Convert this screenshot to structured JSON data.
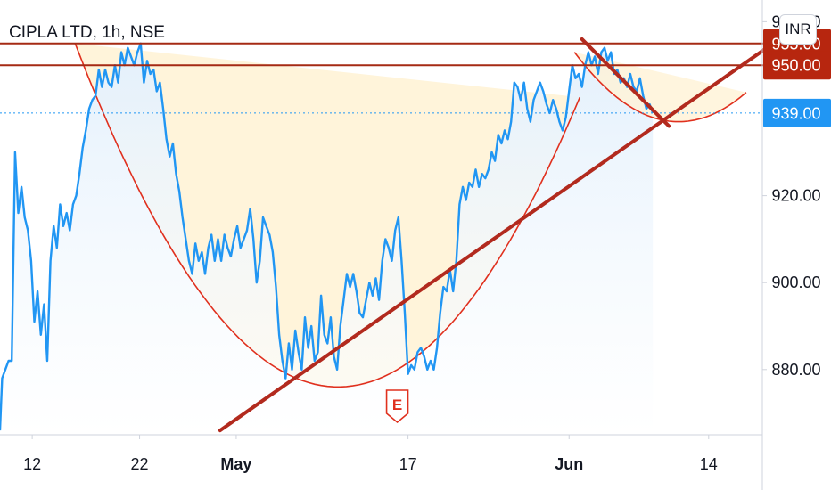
{
  "header": {
    "symbol_title": "CIPLA LTD, 1h, NSE",
    "currency_button": "INR"
  },
  "colors": {
    "price_line": "#2196f3",
    "price_fill": "#e3f0fc",
    "cup_fill": "#fff3d6",
    "cup_stroke": "#e0301e",
    "trendline": "#b22a1e",
    "resistance": "#a52a14",
    "tag_dark": "#b7260f",
    "tag_blue": "#2196f3",
    "axis_text": "#131722"
  },
  "chart_data": {
    "type": "line",
    "title": "CIPLA LTD, 1h, NSE",
    "xlabel": "",
    "ylabel": "",
    "x_ticks": [
      {
        "label": "12",
        "day": 12,
        "bold": false
      },
      {
        "label": "22",
        "day": 22,
        "bold": false
      },
      {
        "label": "May",
        "day": 31,
        "bold": true
      },
      {
        "label": "17",
        "day": 47,
        "bold": false
      },
      {
        "label": "Jun",
        "day": 62,
        "bold": true
      },
      {
        "label": "14",
        "day": 75,
        "bold": false
      }
    ],
    "y_ticks": [
      880,
      900,
      920,
      960
    ],
    "y_tick_labels": [
      "880.00",
      "900.00",
      "920.00",
      "960.00"
    ],
    "ylim": [
      865,
      965
    ],
    "xlim": [
      9,
      80
    ],
    "price_tags": [
      {
        "label": "955.00",
        "value": 955,
        "style": "dark"
      },
      {
        "label": "950.00",
        "value": 950,
        "style": "dark"
      },
      {
        "label": "939.00",
        "value": 939,
        "style": "blue"
      }
    ],
    "horizontal_levels": [
      955,
      950
    ],
    "last_price": 939,
    "series": [
      {
        "points": [
          [
            9.0,
            866
          ],
          [
            9.2,
            878
          ],
          [
            9.5,
            880
          ],
          [
            9.8,
            882
          ],
          [
            10.1,
            882
          ],
          [
            10.4,
            930
          ],
          [
            10.7,
            916
          ],
          [
            11.0,
            922
          ],
          [
            11.3,
            915
          ],
          [
            11.6,
            912
          ],
          [
            11.9,
            905
          ],
          [
            12.2,
            891
          ],
          [
            12.5,
            898
          ],
          [
            12.8,
            888
          ],
          [
            13.1,
            895
          ],
          [
            13.4,
            882
          ],
          [
            13.7,
            905
          ],
          [
            14.0,
            913
          ],
          [
            14.3,
            908
          ],
          [
            14.6,
            918
          ],
          [
            14.9,
            913
          ],
          [
            15.2,
            916
          ],
          [
            15.5,
            912
          ],
          [
            15.8,
            918
          ],
          [
            16.1,
            920
          ],
          [
            16.4,
            925
          ],
          [
            16.7,
            931
          ],
          [
            17.0,
            935
          ],
          [
            17.3,
            940
          ],
          [
            17.6,
            942
          ],
          [
            17.9,
            943
          ],
          [
            18.2,
            949
          ],
          [
            18.5,
            945
          ],
          [
            18.8,
            949
          ],
          [
            19.1,
            946
          ],
          [
            19.4,
            945
          ],
          [
            19.7,
            950
          ],
          [
            20.0,
            946
          ],
          [
            20.3,
            953
          ],
          [
            20.6,
            950
          ],
          [
            20.9,
            954
          ],
          [
            21.2,
            952
          ],
          [
            21.5,
            950
          ],
          [
            21.8,
            953
          ],
          [
            22.1,
            955
          ],
          [
            22.4,
            946
          ],
          [
            22.7,
            951
          ],
          [
            23.0,
            948
          ],
          [
            23.3,
            949
          ],
          [
            23.6,
            944
          ],
          [
            23.9,
            946
          ],
          [
            24.2,
            940
          ],
          [
            24.5,
            933
          ],
          [
            24.8,
            929
          ],
          [
            25.1,
            932
          ],
          [
            25.4,
            925
          ],
          [
            25.7,
            921
          ],
          [
            26.0,
            915
          ],
          [
            26.3,
            910
          ],
          [
            26.6,
            905
          ],
          [
            26.9,
            902
          ],
          [
            27.2,
            909
          ],
          [
            27.5,
            905
          ],
          [
            27.8,
            907
          ],
          [
            28.1,
            902
          ],
          [
            28.4,
            908
          ],
          [
            28.7,
            911
          ],
          [
            29.0,
            905
          ],
          [
            29.3,
            910
          ],
          [
            29.6,
            905
          ],
          [
            29.9,
            911
          ],
          [
            30.2,
            908
          ],
          [
            30.5,
            906
          ],
          [
            30.8,
            910
          ],
          [
            31.1,
            913
          ],
          [
            31.4,
            908
          ],
          [
            31.7,
            910
          ],
          [
            32.0,
            912
          ],
          [
            32.3,
            917
          ],
          [
            32.6,
            910
          ],
          [
            32.9,
            900
          ],
          [
            33.2,
            905
          ],
          [
            33.5,
            915
          ],
          [
            33.8,
            913
          ],
          [
            34.1,
            911
          ],
          [
            34.4,
            907
          ],
          [
            34.7,
            899
          ],
          [
            35.0,
            888
          ],
          [
            35.3,
            882
          ],
          [
            35.6,
            878
          ],
          [
            35.9,
            886
          ],
          [
            36.2,
            880
          ],
          [
            36.5,
            889
          ],
          [
            36.8,
            884
          ],
          [
            37.1,
            880
          ],
          [
            37.4,
            892
          ],
          [
            37.7,
            885
          ],
          [
            38.0,
            890
          ],
          [
            38.3,
            882
          ],
          [
            38.6,
            884
          ],
          [
            38.9,
            897
          ],
          [
            39.2,
            888
          ],
          [
            39.5,
            886
          ],
          [
            39.8,
            892
          ],
          [
            40.1,
            883
          ],
          [
            40.4,
            880
          ],
          [
            40.7,
            890
          ],
          [
            41.0,
            896
          ],
          [
            41.3,
            902
          ],
          [
            41.6,
            899
          ],
          [
            41.9,
            902
          ],
          [
            42.2,
            898
          ],
          [
            42.5,
            893
          ],
          [
            42.8,
            892
          ],
          [
            43.1,
            896
          ],
          [
            43.4,
            900
          ],
          [
            43.7,
            897
          ],
          [
            44.0,
            901
          ],
          [
            44.3,
            896
          ],
          [
            44.6,
            905
          ],
          [
            44.9,
            910
          ],
          [
            45.2,
            908
          ],
          [
            45.5,
            905
          ],
          [
            45.8,
            912
          ],
          [
            46.1,
            915
          ],
          [
            46.4,
            905
          ],
          [
            46.7,
            893
          ],
          [
            47.0,
            879
          ],
          [
            47.3,
            881
          ],
          [
            47.6,
            880
          ],
          [
            47.9,
            884
          ],
          [
            48.2,
            885
          ],
          [
            48.5,
            883
          ],
          [
            48.8,
            880
          ],
          [
            49.1,
            882
          ],
          [
            49.4,
            880
          ],
          [
            49.7,
            885
          ],
          [
            50.0,
            893
          ],
          [
            50.3,
            899
          ],
          [
            50.6,
            898
          ],
          [
            50.9,
            903
          ],
          [
            51.2,
            898
          ],
          [
            51.5,
            905
          ],
          [
            51.8,
            918
          ],
          [
            52.1,
            922
          ],
          [
            52.4,
            919
          ],
          [
            52.7,
            923
          ],
          [
            53.0,
            922
          ],
          [
            53.3,
            926
          ],
          [
            53.6,
            922
          ],
          [
            53.9,
            925
          ],
          [
            54.2,
            924
          ],
          [
            54.5,
            926
          ],
          [
            54.8,
            930
          ],
          [
            55.1,
            928
          ],
          [
            55.4,
            934
          ],
          [
            55.7,
            932
          ],
          [
            56.0,
            935
          ],
          [
            56.3,
            933
          ],
          [
            56.6,
            937
          ],
          [
            56.9,
            946
          ],
          [
            57.2,
            945
          ],
          [
            57.5,
            942
          ],
          [
            57.8,
            946
          ],
          [
            58.1,
            940
          ],
          [
            58.4,
            937
          ],
          [
            58.7,
            942
          ],
          [
            59.0,
            944
          ],
          [
            59.3,
            946
          ],
          [
            59.6,
            944
          ],
          [
            59.9,
            941
          ],
          [
            60.2,
            939
          ],
          [
            60.5,
            942
          ],
          [
            60.8,
            940
          ],
          [
            61.1,
            937
          ],
          [
            61.4,
            935
          ],
          [
            61.7,
            938
          ],
          [
            62.0,
            944
          ],
          [
            62.3,
            950
          ],
          [
            62.6,
            947
          ],
          [
            62.9,
            948
          ],
          [
            63.2,
            945
          ],
          [
            63.5,
            950
          ],
          [
            63.8,
            953
          ],
          [
            64.1,
            950
          ],
          [
            64.4,
            952
          ],
          [
            64.7,
            948
          ],
          [
            65.0,
            953
          ],
          [
            65.3,
            954
          ],
          [
            65.6,
            951
          ],
          [
            65.9,
            953
          ],
          [
            66.2,
            948
          ],
          [
            66.5,
            949
          ],
          [
            66.8,
            946
          ],
          [
            67.1,
            947
          ],
          [
            67.4,
            945
          ],
          [
            67.7,
            948
          ],
          [
            68.0,
            945
          ],
          [
            68.3,
            944
          ],
          [
            68.6,
            947
          ],
          [
            68.9,
            943
          ],
          [
            69.2,
            940
          ],
          [
            69.5,
            941
          ],
          [
            69.8,
            939
          ]
        ]
      }
    ],
    "annotations": {
      "cup_big": {
        "x_start": 16.0,
        "x_end": 63.0,
        "bottom_x": 40.5,
        "bottom_y": 876,
        "rim_y": 955
      },
      "cup_small": {
        "x_start": 62.5,
        "x_end": 78.5,
        "bottom_x": 72.2,
        "bottom_y": 937,
        "rim_y": 953
      },
      "trendline": {
        "x1": 29.5,
        "y1": 866,
        "x2": 81,
        "y2": 955
      },
      "down_trendline": {
        "x1": 63.2,
        "y1": 956,
        "x2": 71.3,
        "y2": 936
      },
      "earnings_marker": {
        "label": "E",
        "day": 46.0
      }
    }
  }
}
